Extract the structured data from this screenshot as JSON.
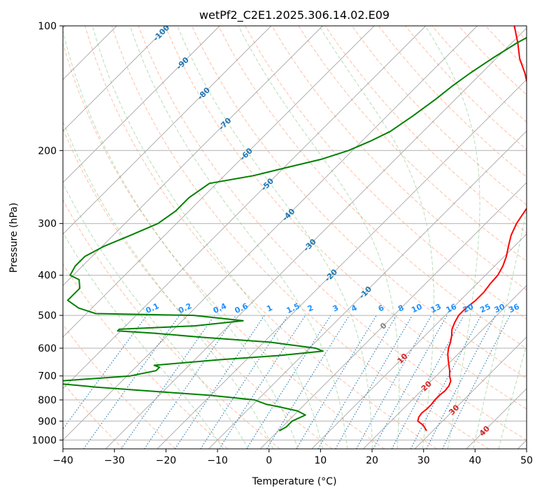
{
  "chart_data": {
    "type": "line",
    "title": "wetPf2_C2E1.2025.306.14.02.E09",
    "xlabel": "Temperature (°C)",
    "ylabel": "Pressure (hPa)",
    "xlim": [
      -40,
      50
    ],
    "ylim": [
      1050,
      100
    ],
    "y_scale": "log",
    "x_ticks": [
      "−40",
      "−30",
      "−20",
      "−10",
      "0",
      "10",
      "20",
      "30",
      "40",
      "50"
    ],
    "y_ticks": [
      {
        "p": 100,
        "label": "100"
      },
      {
        "p": 200,
        "label": "200"
      },
      {
        "p": 300,
        "label": "300"
      },
      {
        "p": 400,
        "label": "400"
      },
      {
        "p": 500,
        "label": "500"
      },
      {
        "p": 600,
        "label": "600"
      },
      {
        "p": 700,
        "label": "700"
      },
      {
        "p": 800,
        "label": "800"
      },
      {
        "p": 900,
        "label": "900"
      },
      {
        "p": 1000,
        "label": "1000"
      }
    ],
    "grid": true,
    "colors": {
      "temperature": "#ff0000",
      "dewpoint": "#008000",
      "isotherm": "#808080",
      "dry_adiabat": "#ff7f50",
      "moist_adiabat": "#2ca02c",
      "mixing_ratio": "#1f77b4",
      "isotherm_label_cold": "#1f77b4",
      "isotherm_label_warm": "#d62728",
      "mixing_label": "#1e90ff",
      "zero_label": "#808080"
    },
    "series": [
      {
        "id": "temperature",
        "points": [
          [
            950,
            28.8
          ],
          [
            920,
            27
          ],
          [
            900,
            25.2
          ],
          [
            880,
            24.6
          ],
          [
            860,
            24.4
          ],
          [
            840,
            24.6
          ],
          [
            820,
            24.6
          ],
          [
            800,
            24.4
          ],
          [
            780,
            24.4
          ],
          [
            760,
            24.6
          ],
          [
            740,
            24.4
          ],
          [
            720,
            23.8
          ],
          [
            700,
            22.6
          ],
          [
            680,
            21.6
          ],
          [
            660,
            20.4
          ],
          [
            640,
            19.2
          ],
          [
            620,
            18
          ],
          [
            600,
            17
          ],
          [
            580,
            16.2
          ],
          [
            560,
            15.2
          ],
          [
            540,
            14
          ],
          [
            520,
            13.2
          ],
          [
            500,
            12.6
          ],
          [
            480,
            12.6
          ],
          [
            460,
            13
          ],
          [
            440,
            13
          ],
          [
            420,
            12.6
          ],
          [
            400,
            12.4
          ],
          [
            380,
            11.6
          ],
          [
            360,
            10.4
          ],
          [
            340,
            8.8
          ],
          [
            320,
            7.2
          ],
          [
            300,
            6
          ],
          [
            280,
            5.2
          ],
          [
            260,
            4.4
          ],
          [
            240,
            3
          ],
          [
            220,
            0.6
          ],
          [
            200,
            -3.4
          ],
          [
            180,
            -7.6
          ],
          [
            160,
            -12.8
          ],
          [
            140,
            -18.4
          ],
          [
            130,
            -21.6
          ],
          [
            120,
            -25.4
          ],
          [
            110,
            -28.8
          ],
          [
            100,
            -32.8
          ]
        ]
      },
      {
        "id": "dewpoint",
        "points": [
          [
            950,
            0.2
          ],
          [
            930,
            0.8
          ],
          [
            900,
            0.8
          ],
          [
            870,
            2.2
          ],
          [
            850,
            -0.2
          ],
          [
            830,
            -4.8
          ],
          [
            820,
            -7.4
          ],
          [
            800,
            -10.6
          ],
          [
            780,
            -20
          ],
          [
            760,
            -33.8
          ],
          [
            745,
            -43.8
          ],
          [
            730,
            -52
          ],
          [
            720,
            -52
          ],
          [
            700,
            -39.4
          ],
          [
            680,
            -35.4
          ],
          [
            667,
            -35.4
          ],
          [
            660,
            -36.8
          ],
          [
            640,
            -25.4
          ],
          [
            625,
            -14.4
          ],
          [
            610,
            -6.8
          ],
          [
            600,
            -8.8
          ],
          [
            580,
            -19
          ],
          [
            565,
            -32.8
          ],
          [
            552,
            -43
          ],
          [
            545,
            -50.6
          ],
          [
            540,
            -50.6
          ],
          [
            530,
            -36.6
          ],
          [
            515,
            -28.2
          ],
          [
            500,
            -38.8
          ],
          [
            495,
            -58.2
          ],
          [
            480,
            -62.6
          ],
          [
            460,
            -66.2
          ],
          [
            430,
            -66.2
          ],
          [
            410,
            -68
          ],
          [
            400,
            -70.6
          ],
          [
            380,
            -71.4
          ],
          [
            360,
            -71.4
          ],
          [
            340,
            -69.6
          ],
          [
            320,
            -66.6
          ],
          [
            300,
            -63.6
          ],
          [
            280,
            -62.6
          ],
          [
            260,
            -62.6
          ],
          [
            240,
            -61.4
          ],
          [
            230,
            -54.4
          ],
          [
            220,
            -49.6
          ],
          [
            210,
            -44.4
          ],
          [
            200,
            -40.8
          ],
          [
            190,
            -38.4
          ],
          [
            180,
            -36.4
          ],
          [
            165,
            -35
          ],
          [
            150,
            -33.8
          ],
          [
            140,
            -33.2
          ],
          [
            130,
            -32.2
          ],
          [
            120,
            -30.8
          ],
          [
            110,
            -29
          ],
          [
            100,
            -26.2
          ]
        ]
      }
    ],
    "isotherm_labels": [
      {
        "t": -100,
        "label": "-100"
      },
      {
        "t": -90,
        "label": "-90"
      },
      {
        "t": -80,
        "label": "-80"
      },
      {
        "t": -70,
        "label": "-70"
      },
      {
        "t": -60,
        "label": "-60"
      },
      {
        "t": -50,
        "label": "-50"
      },
      {
        "t": -40,
        "label": "-40"
      },
      {
        "t": -30,
        "label": "-30"
      },
      {
        "t": -20,
        "label": "-20"
      },
      {
        "t": -10,
        "label": "-10"
      },
      {
        "t": 0,
        "label": "0"
      },
      {
        "t": 10,
        "label": "10"
      },
      {
        "t": 20,
        "label": "20"
      },
      {
        "t": 30,
        "label": "30"
      },
      {
        "t": 40,
        "label": "40"
      }
    ],
    "mixing_ratio_labels": [
      {
        "w": 0.1,
        "label": "0.1"
      },
      {
        "w": 0.2,
        "label": "0.2"
      },
      {
        "w": 0.4,
        "label": "0.4"
      },
      {
        "w": 0.6,
        "label": "0.6"
      },
      {
        "w": 1,
        "label": "1"
      },
      {
        "w": 1.5,
        "label": "1.5"
      },
      {
        "w": 2,
        "label": "2"
      },
      {
        "w": 3,
        "label": "3"
      },
      {
        "w": 4,
        "label": "4"
      },
      {
        "w": 6,
        "label": "6"
      },
      {
        "w": 8,
        "label": "8"
      },
      {
        "w": 10,
        "label": "10"
      },
      {
        "w": 13,
        "label": "13"
      },
      {
        "w": 16,
        "label": "16"
      },
      {
        "w": 20,
        "label": "20"
      },
      {
        "w": 25,
        "label": "25"
      },
      {
        "w": 30,
        "label": "30"
      },
      {
        "w": 36,
        "label": "36"
      }
    ],
    "dry_adiabats_theta_c": [
      -30,
      -20,
      -10,
      0,
      10,
      20,
      30,
      40,
      50,
      60,
      70,
      80,
      90,
      100,
      110,
      120,
      130,
      140,
      150,
      160,
      170,
      180,
      190,
      200,
      210,
      220,
      230,
      240,
      250,
      260,
      270,
      280,
      290,
      300
    ],
    "moist_adiabats_c": [
      -10,
      -5,
      0,
      5,
      10,
      15,
      20,
      25,
      30,
      35,
      40,
      45
    ]
  }
}
